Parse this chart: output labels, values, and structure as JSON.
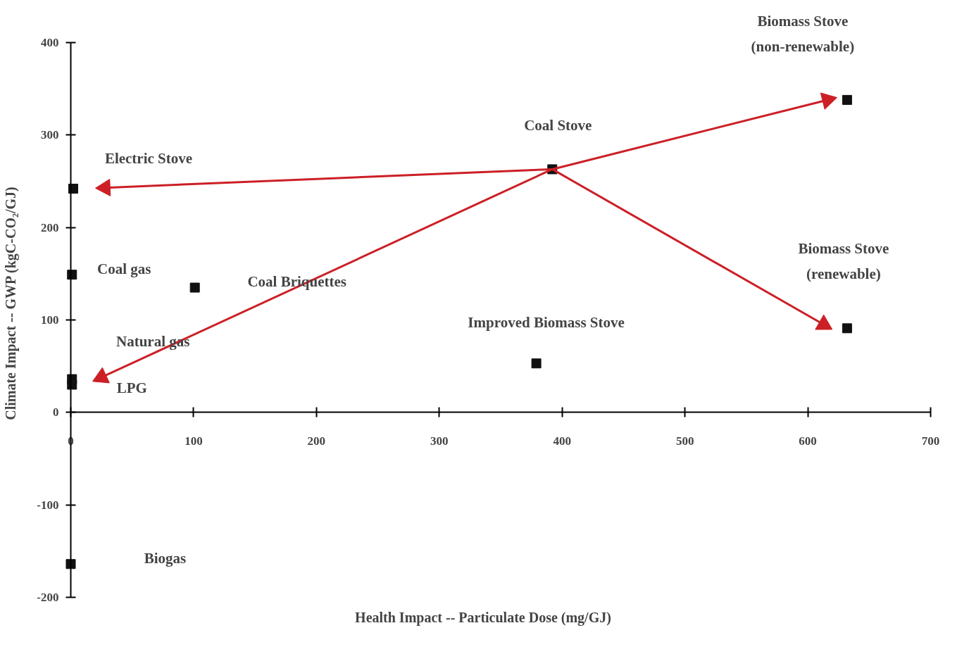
{
  "chart_data": {
    "type": "scatter",
    "xlabel": "Health Impact -- Particulate Dose (mg/GJ)",
    "ylabel": "Climate Impact -- GWP (kgC-CO₂/GJ)",
    "xlim": [
      0,
      700
    ],
    "ylim": [
      -200,
      400
    ],
    "xticks": [
      0,
      100,
      200,
      300,
      400,
      500,
      600,
      700
    ],
    "yticks": [
      -200,
      -100,
      0,
      100,
      200,
      300,
      400
    ],
    "grid": false,
    "marker": "square",
    "series": [
      {
        "type": "scatter",
        "color": "#111111",
        "x": [
          2,
          1,
          101,
          1,
          1,
          0,
          392,
          379,
          632,
          632
        ],
        "values": [
          242,
          149,
          135,
          36,
          30,
          -164,
          263,
          53,
          338,
          91
        ]
      },
      {
        "type": "line",
        "marker": "triangle",
        "color": "#cc1f26",
        "x": [
          392,
          28
        ],
        "values": [
          263,
          243
        ]
      },
      {
        "type": "line",
        "marker": "triangle",
        "color": "#cc1f26",
        "x": [
          392,
          616
        ],
        "values": [
          263,
          338
        ]
      },
      {
        "type": "line",
        "marker": "triangle",
        "color": "#cc1f26",
        "x": [
          392,
          613
        ],
        "values": [
          263,
          95
        ]
      },
      {
        "type": "line",
        "marker": "triangle",
        "color": "#cc1f26",
        "x": [
          392,
          25
        ],
        "values": [
          263,
          38
        ]
      }
    ],
    "annotations": [
      "Electric Stove",
      "Coal gas",
      "Coal Briquettes",
      "Natural gas",
      "LPG",
      "Biogas",
      "Coal Stove",
      "Improved Biomass Stove",
      "Biomass Stove\n(non-renewable)",
      "Biomass Stove\n(renewable)"
    ]
  }
}
